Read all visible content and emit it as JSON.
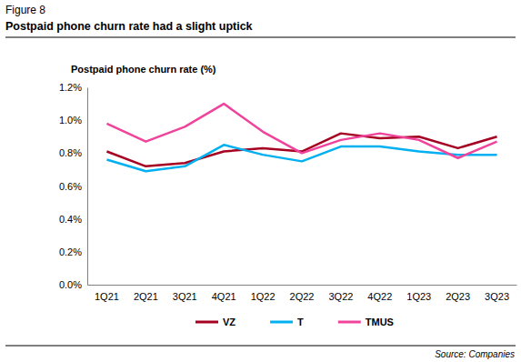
{
  "chart_data": {
    "type": "line",
    "figure_number": "Figure 8",
    "title": "Postpaid phone churn rate had a slight uptick",
    "ylabel": "Postpaid phone churn rate (%)",
    "source": "Source: Companies",
    "categories": [
      "1Q21",
      "2Q21",
      "3Q21",
      "4Q21",
      "1Q22",
      "2Q22",
      "3Q22",
      "4Q22",
      "1Q23",
      "2Q23",
      "3Q23"
    ],
    "series": [
      {
        "name": "VZ",
        "color": "#a50021",
        "line_style": "solid",
        "values": [
          0.81,
          0.72,
          0.74,
          0.81,
          0.83,
          0.81,
          0.92,
          0.89,
          0.9,
          0.83,
          0.9
        ]
      },
      {
        "name": "T",
        "color": "#00b0f0",
        "line_style": "solid",
        "values": [
          0.76,
          0.69,
          0.72,
          0.85,
          0.79,
          0.75,
          0.84,
          0.84,
          0.81,
          0.79,
          0.79
        ]
      },
      {
        "name": "TMUS",
        "color": "#f0439b",
        "line_style": "solid",
        "values": [
          0.98,
          0.87,
          0.96,
          1.1,
          0.93,
          0.8,
          0.88,
          0.92,
          0.88,
          0.77,
          0.87
        ]
      }
    ],
    "ylim": [
      0,
      1.2
    ],
    "yticks": [
      {
        "value": 0,
        "label": "0.0%"
      },
      {
        "value": 0.2,
        "label": "0.2%"
      },
      {
        "value": 0.4,
        "label": "0.4%"
      },
      {
        "value": 0.6,
        "label": "0.6%"
      },
      {
        "value": 0.8,
        "label": "0.8%"
      },
      {
        "value": 1.0,
        "label": "1.0%"
      },
      {
        "value": 1.2,
        "label": "1.2%"
      }
    ],
    "grid": false,
    "legend": "bottom"
  }
}
